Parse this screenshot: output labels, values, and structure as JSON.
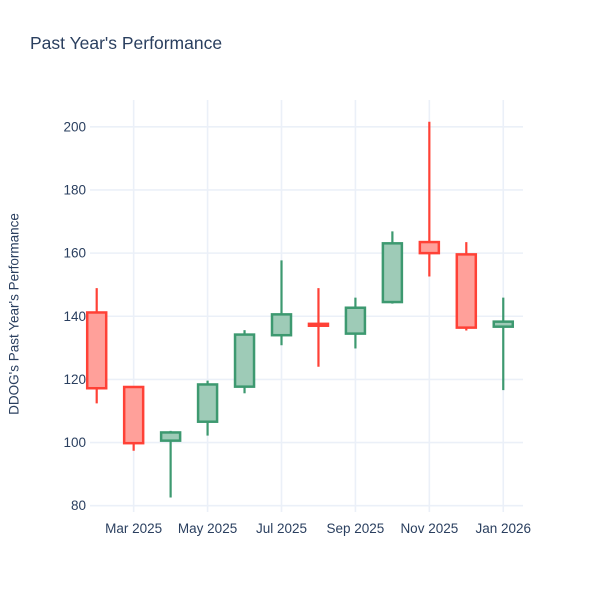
{
  "chart": {
    "title": "Past Year's Performance",
    "ylabel": "DDOG's Past Year's Performance"
  },
  "chart_data": {
    "type": "candlestick",
    "title": "Past Year's Performance",
    "ylabel": "DDOG's Past Year's Performance",
    "xlabel": "",
    "x": [
      "Feb 2025",
      "Mar 2025",
      "Apr 2025",
      "May 2025",
      "Jun 2025",
      "Jul 2025",
      "Aug 2025",
      "Sep 2025",
      "Oct 2025",
      "Nov 2025",
      "Dec 2025",
      "Jan 2026"
    ],
    "series": [
      {
        "name": "DDOG",
        "open": [
          141.2,
          117.6,
          100.6,
          106.6,
          117.7,
          134.0,
          137.6,
          134.5,
          144.5,
          163.5,
          159.6,
          136.7
        ],
        "high": [
          148.9,
          117.6,
          103.7,
          119.6,
          135.6,
          157.7,
          148.9,
          145.9,
          166.9,
          201.6,
          163.5,
          145.9
        ],
        "low": [
          112.4,
          97.4,
          82.6,
          102.2,
          115.6,
          130.8,
          124.0,
          129.8,
          144.0,
          152.6,
          135.5,
          116.6
        ],
        "close": [
          117.2,
          99.8,
          103.2,
          118.4,
          134.2,
          140.6,
          137.0,
          142.7,
          163.1,
          160.0,
          136.4,
          138.3
        ]
      }
    ],
    "x_tick_indices": [
      1,
      3,
      5,
      7,
      9,
      11
    ],
    "x_tick_labels": [
      "Mar 2025",
      "May 2025",
      "Jul 2025",
      "Sep 2025",
      "Nov 2025",
      "Jan 2026"
    ],
    "y_ticks": [
      80,
      100,
      120,
      140,
      160,
      180,
      200
    ],
    "ylim": [
      78,
      208.5
    ],
    "grid": true,
    "legend": "none",
    "colors": {
      "increasing_line": "#3D9970",
      "increasing_fill": "#9ECBB7",
      "decreasing_line": "#FF4136",
      "decreasing_fill": "#FFA09A",
      "font": "#2A3F5F",
      "gridline": "#EBF0F8",
      "background": "#FFFFFF"
    }
  }
}
